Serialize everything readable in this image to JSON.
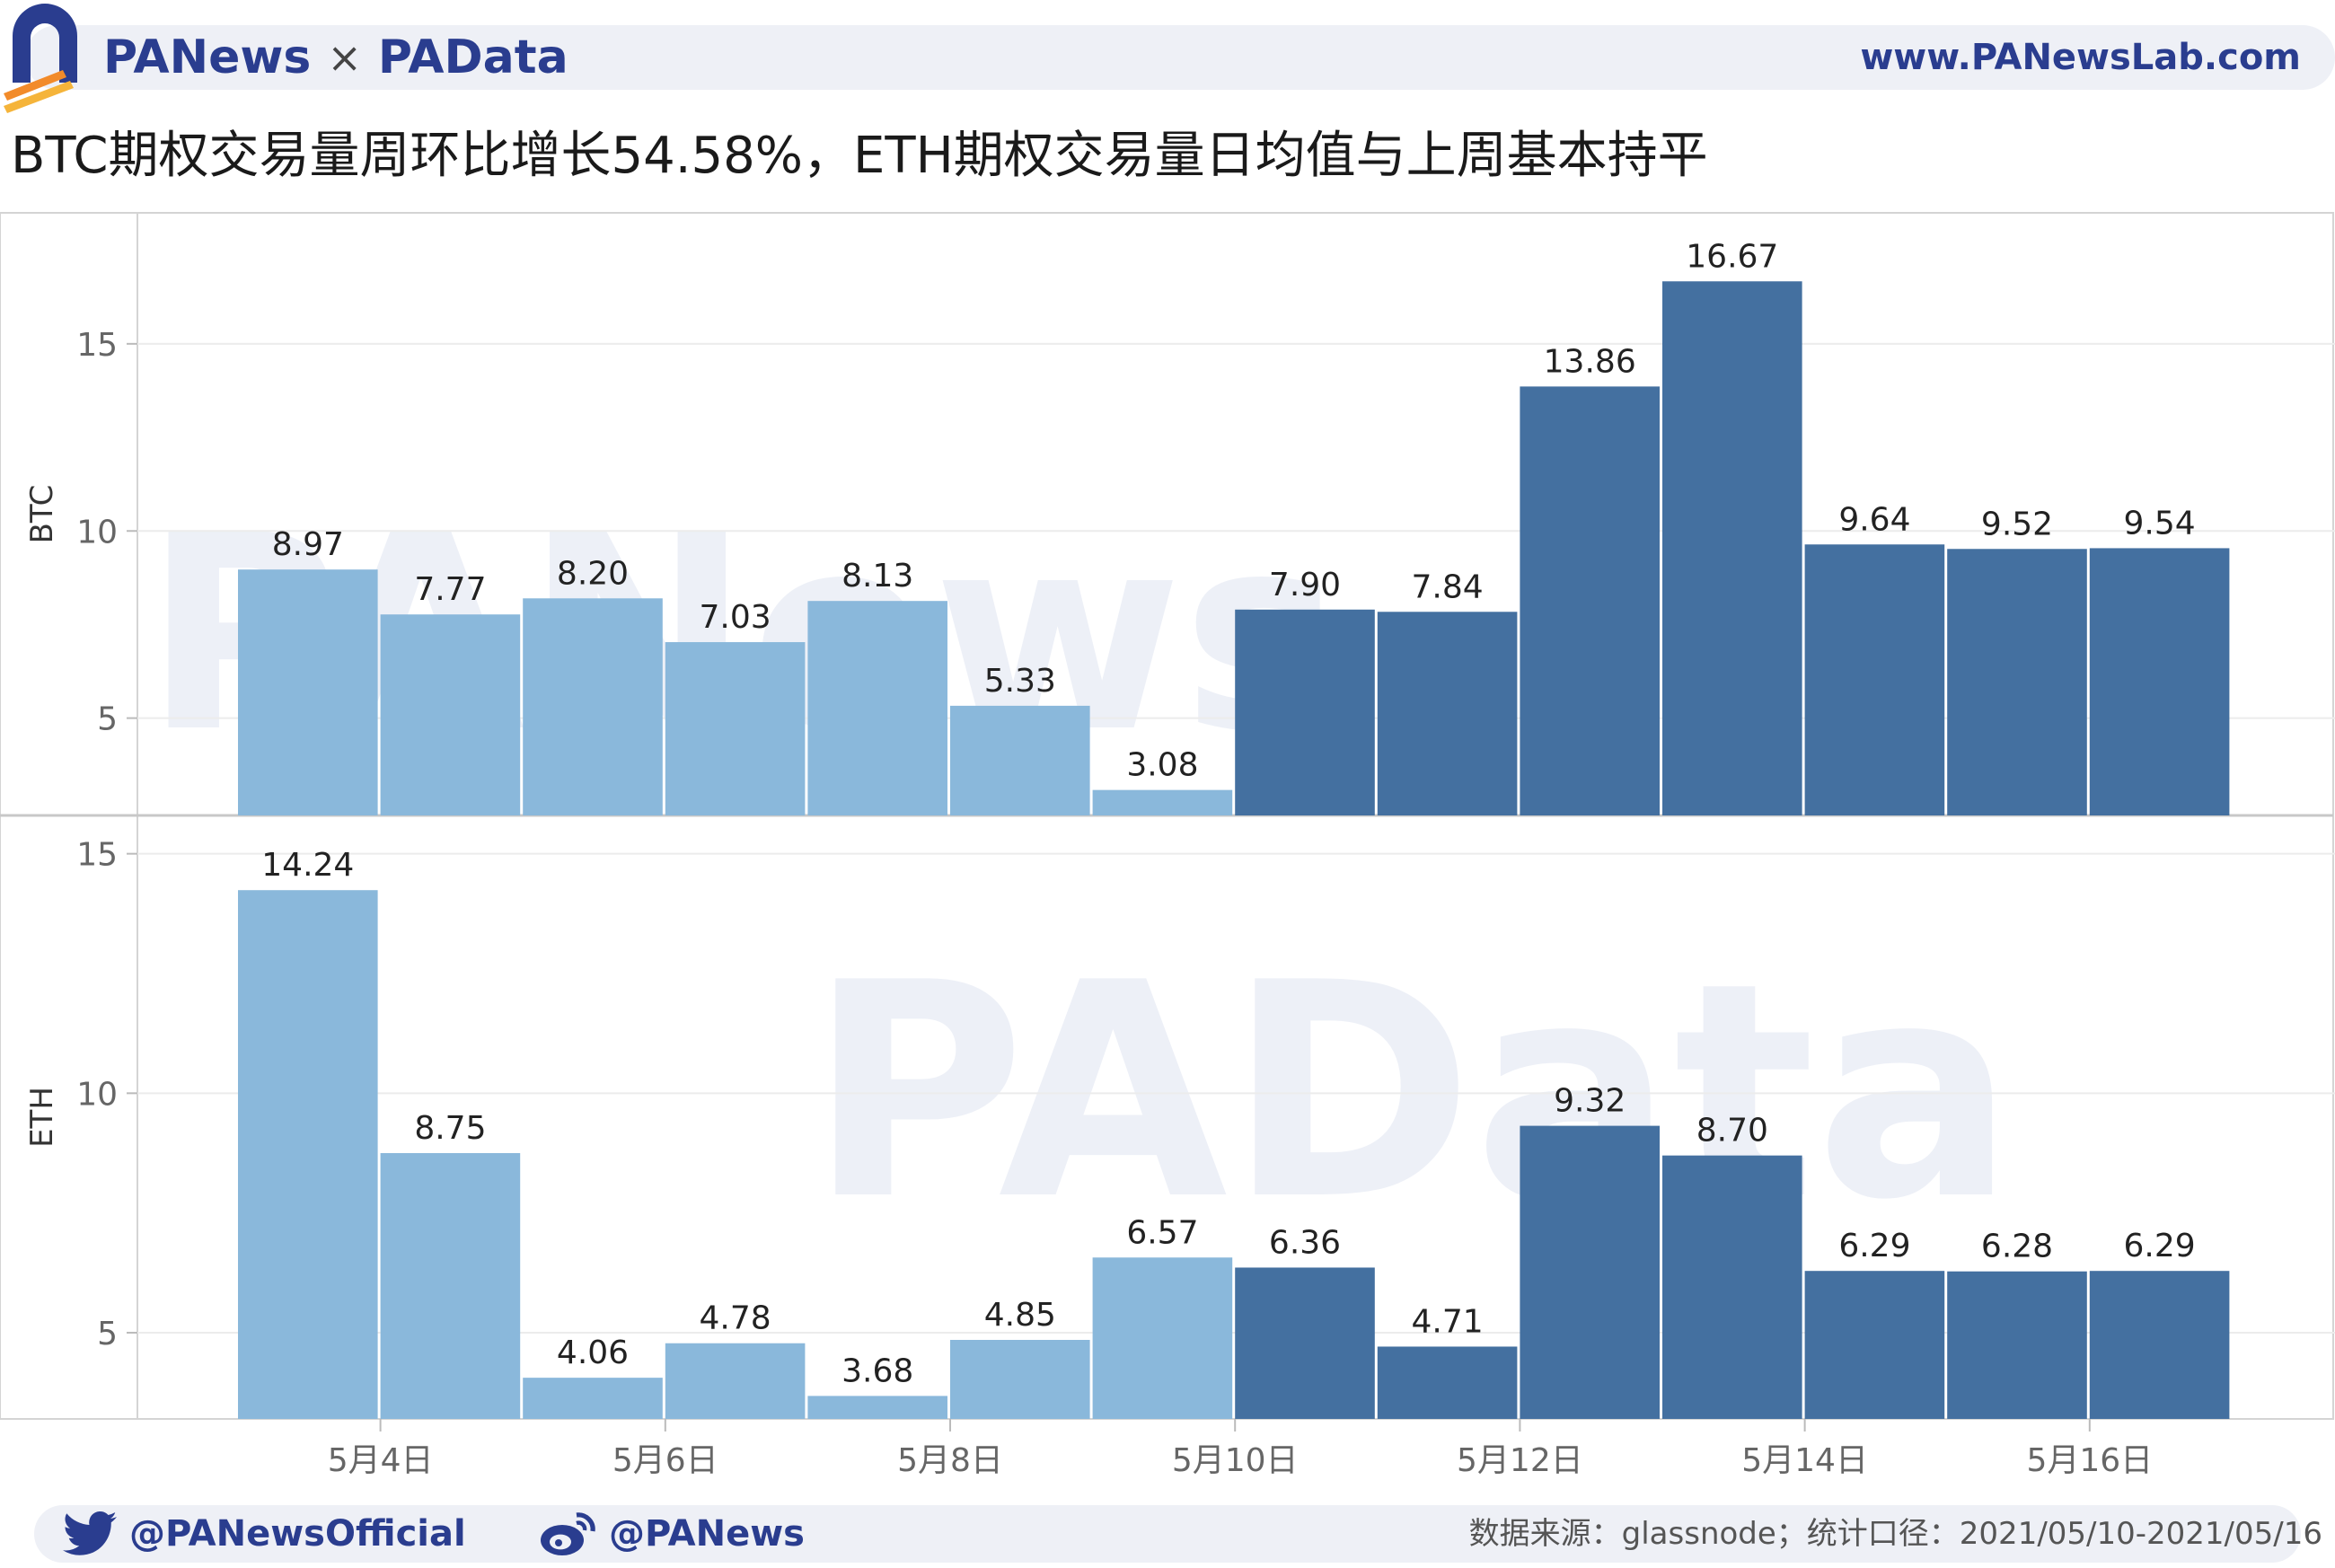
{
  "header": {
    "brand_left": "PANews",
    "brand_sep": "×",
    "brand_right": "PAData",
    "url": "www.PANewsLab.com"
  },
  "footer": {
    "twitter": "@PANewsOfficial",
    "weibo": "@PANews",
    "source": "数据来源：glassnode；统计口径：2021/05/10-2021/05/16"
  },
  "colors": {
    "light_bar": "#8ab8db",
    "dark_bar": "#4470a0",
    "brand": "#2a3d8f"
  },
  "chart_data": {
    "type": "bar",
    "title": "BTC期权交易量周环比增长54.58%，ETH期权交易量日均值与上周基本持平",
    "x_tick_labels": [
      "5月4日",
      "5月6日",
      "5月8日",
      "5月10日",
      "5月12日",
      "5月14日",
      "5月16日"
    ],
    "x_tick_days": [
      4,
      6,
      8,
      10,
      12,
      14,
      16
    ],
    "x_days": [
      3,
      4,
      5,
      6,
      7,
      8,
      9,
      10,
      11,
      12,
      13,
      14,
      15,
      16
    ],
    "previous_week_color": "light_bar",
    "current_week_color": "dark_bar",
    "current_week_start_day": 10,
    "panels": [
      {
        "name": "BTC",
        "ylabel": "BTC",
        "yticks": [
          5,
          10,
          15
        ],
        "ylim": [
          2.4,
          18.5
        ],
        "values": [
          8.97,
          7.77,
          8.2,
          7.03,
          8.13,
          5.33,
          3.08,
          7.9,
          7.84,
          13.86,
          16.67,
          9.64,
          9.52,
          9.54
        ],
        "labels": [
          "8.97",
          "7.77",
          "8.20",
          "7.03",
          "8.13",
          "5.33",
          "3.08",
          "7.90",
          "7.84",
          "13.86",
          "16.67",
          "9.64",
          "9.52",
          "9.54"
        ]
      },
      {
        "name": "ETH",
        "ylabel": "ETH",
        "yticks": [
          5,
          10,
          15
        ],
        "ylim": [
          3.2,
          15.8
        ],
        "values": [
          14.24,
          8.75,
          4.06,
          4.78,
          3.68,
          4.85,
          6.57,
          6.36,
          4.71,
          9.32,
          8.7,
          6.29,
          6.28,
          6.29
        ],
        "labels": [
          "14.24",
          "8.75",
          "4.06",
          "4.78",
          "3.68",
          "4.85",
          "6.57",
          "6.36",
          "4.71",
          "9.32",
          "8.70",
          "6.29",
          "6.28",
          "6.29"
        ]
      }
    ],
    "grid": true,
    "legend": "none"
  }
}
